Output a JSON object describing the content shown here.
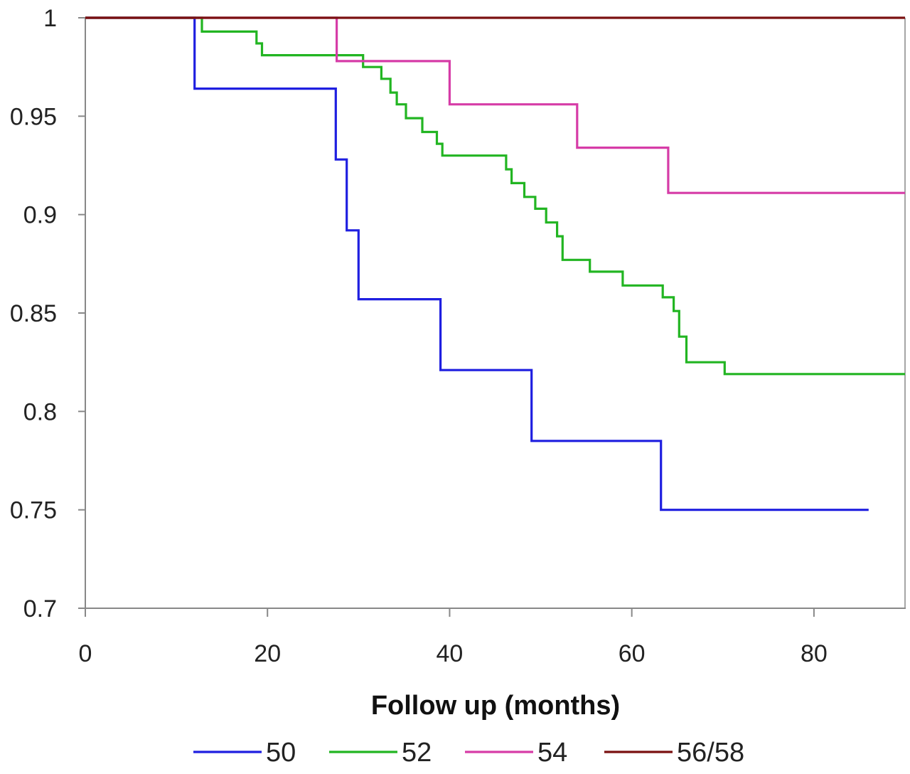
{
  "chart_data": {
    "type": "line",
    "step": true,
    "title": "",
    "xlabel": "Follow up (months)",
    "ylabel": "",
    "xlim": [
      0,
      90
    ],
    "ylim": [
      0.7,
      1.0
    ],
    "x_ticks": [
      0,
      20,
      40,
      60,
      80
    ],
    "y_ticks": [
      0.7,
      0.75,
      0.8,
      0.85,
      0.9,
      0.95,
      1
    ],
    "x_tick_labels": [
      "0",
      "20",
      "40",
      "60",
      "80"
    ],
    "y_tick_labels": [
      "0.7",
      "0.75",
      "0.8",
      "0.85",
      "0.9",
      "0.95",
      "1"
    ],
    "grid": false,
    "legend_position": "bottom",
    "series": [
      {
        "name": "50",
        "color": "#1f1fe0",
        "points": [
          [
            0,
            1.0
          ],
          [
            12,
            0.964
          ],
          [
            27.5,
            0.928
          ],
          [
            28.7,
            0.892
          ],
          [
            30,
            0.857
          ],
          [
            39,
            0.821
          ],
          [
            49,
            0.785
          ],
          [
            63.2,
            0.75
          ],
          [
            86,
            0.75
          ]
        ]
      },
      {
        "name": "52",
        "color": "#22b522",
        "points": [
          [
            0,
            1.0
          ],
          [
            12.8,
            0.993
          ],
          [
            18.8,
            0.987
          ],
          [
            19.4,
            0.981
          ],
          [
            30.5,
            0.975
          ],
          [
            32.5,
            0.969
          ],
          [
            33.5,
            0.962
          ],
          [
            34.2,
            0.956
          ],
          [
            35.2,
            0.949
          ],
          [
            37,
            0.942
          ],
          [
            38.6,
            0.936
          ],
          [
            39.2,
            0.93
          ],
          [
            46.2,
            0.923
          ],
          [
            46.8,
            0.916
          ],
          [
            48.2,
            0.909
          ],
          [
            49.4,
            0.903
          ],
          [
            50.6,
            0.896
          ],
          [
            51.8,
            0.889
          ],
          [
            52.4,
            0.877
          ],
          [
            55.4,
            0.871
          ],
          [
            59,
            0.864
          ],
          [
            63.4,
            0.858
          ],
          [
            64.6,
            0.851
          ],
          [
            65.2,
            0.838
          ],
          [
            66,
            0.825
          ],
          [
            70.2,
            0.819
          ],
          [
            90,
            0.819
          ]
        ]
      },
      {
        "name": "54",
        "color": "#d63ca7",
        "points": [
          [
            0,
            1.0
          ],
          [
            27.6,
            0.978
          ],
          [
            40,
            0.956
          ],
          [
            54,
            0.934
          ],
          [
            64,
            0.911
          ],
          [
            90,
            0.911
          ]
        ]
      },
      {
        "name": "56/58",
        "color": "#7a1010",
        "points": [
          [
            0,
            1.0
          ],
          [
            90,
            1.0
          ]
        ]
      }
    ]
  }
}
